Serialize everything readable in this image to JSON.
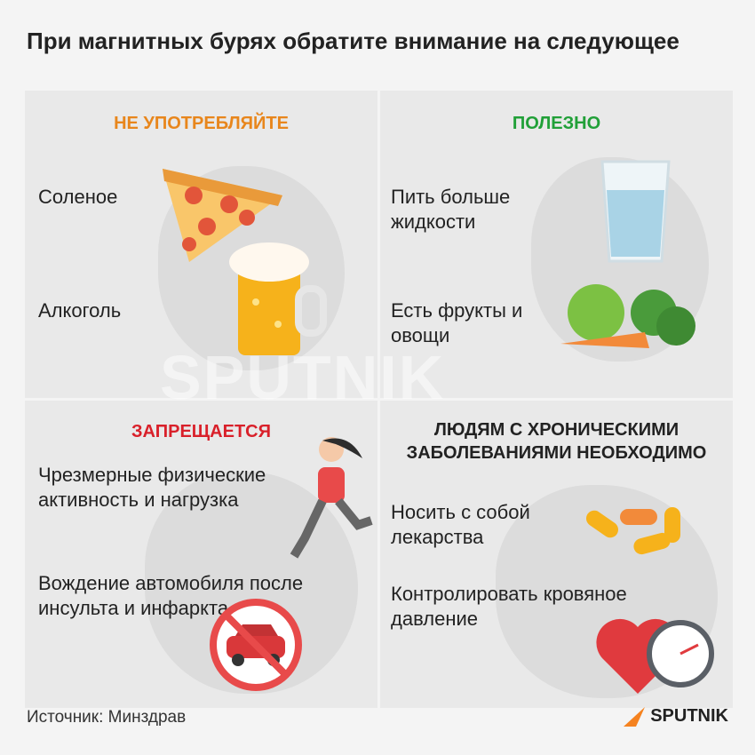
{
  "title": "При магнитных бурях обратите внимание на следующее",
  "panels": {
    "dont_consume": {
      "header": "НЕ УПОТРЕБЛЯЙТЕ",
      "header_color": "#e8861c",
      "items": [
        "Соленое",
        "Алкоголь"
      ],
      "icons": [
        "pizza-icon",
        "beer-mug-icon"
      ]
    },
    "useful": {
      "header": "ПОЛЕЗНО",
      "header_color": "#21a038",
      "items": [
        "Пить больше жидкости",
        "Есть фрукты и овощи"
      ],
      "icons": [
        "water-glass-icon",
        "fruits-vegetables-icon"
      ]
    },
    "forbidden": {
      "header": "ЗАПРЕЩАЕТСЯ",
      "header_color": "#d9202a",
      "items": [
        "Чрезмерные физические активность и нагрузка",
        "Вождение автомобиля после инсульта и инфаркта"
      ],
      "icons": [
        "running-woman-icon",
        "no-car-icon"
      ]
    },
    "chronic": {
      "header": "ЛЮДЯМ С ХРОНИЧЕСКИМИ ЗАБОЛЕВАНИЯМИ НЕОБХОДИМО",
      "header_color": "#222222",
      "items": [
        "Носить с собой лекарства",
        "Контролировать кровяное давление"
      ],
      "icons": [
        "pills-icon",
        "heart-pressure-gauge-icon"
      ]
    }
  },
  "watermark": "SPUTNIK",
  "footer": {
    "source": "Источник: Минздрав",
    "logo": "SPUTNIK",
    "logo_color": "#f5821f"
  }
}
